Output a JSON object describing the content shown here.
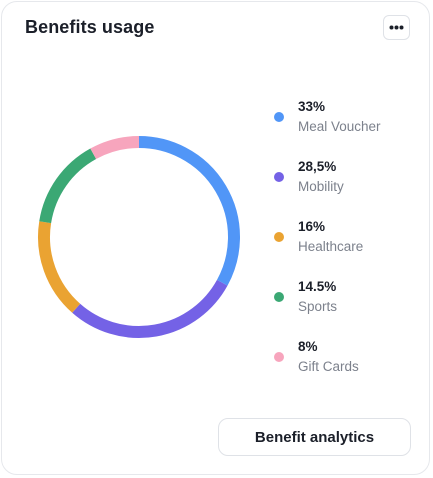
{
  "card": {
    "title": "Benefits usage",
    "more_icon": "more-horizontal-icon",
    "button_label": "Benefit analytics"
  },
  "chart_data": {
    "type": "pie",
    "style": "donut",
    "categories": [
      "Meal Voucher",
      "Mobility",
      "Healthcare",
      "Sports",
      "Gift Cards"
    ],
    "values": [
      33,
      28.5,
      16,
      14.5,
      8
    ],
    "value_labels": [
      "33%",
      "28,5%",
      "16%",
      "14.5%",
      "8%"
    ],
    "colors": [
      "#5196f7",
      "#7462e6",
      "#eaa332",
      "#3ba874",
      "#f7a5bd"
    ],
    "legend": "right"
  }
}
